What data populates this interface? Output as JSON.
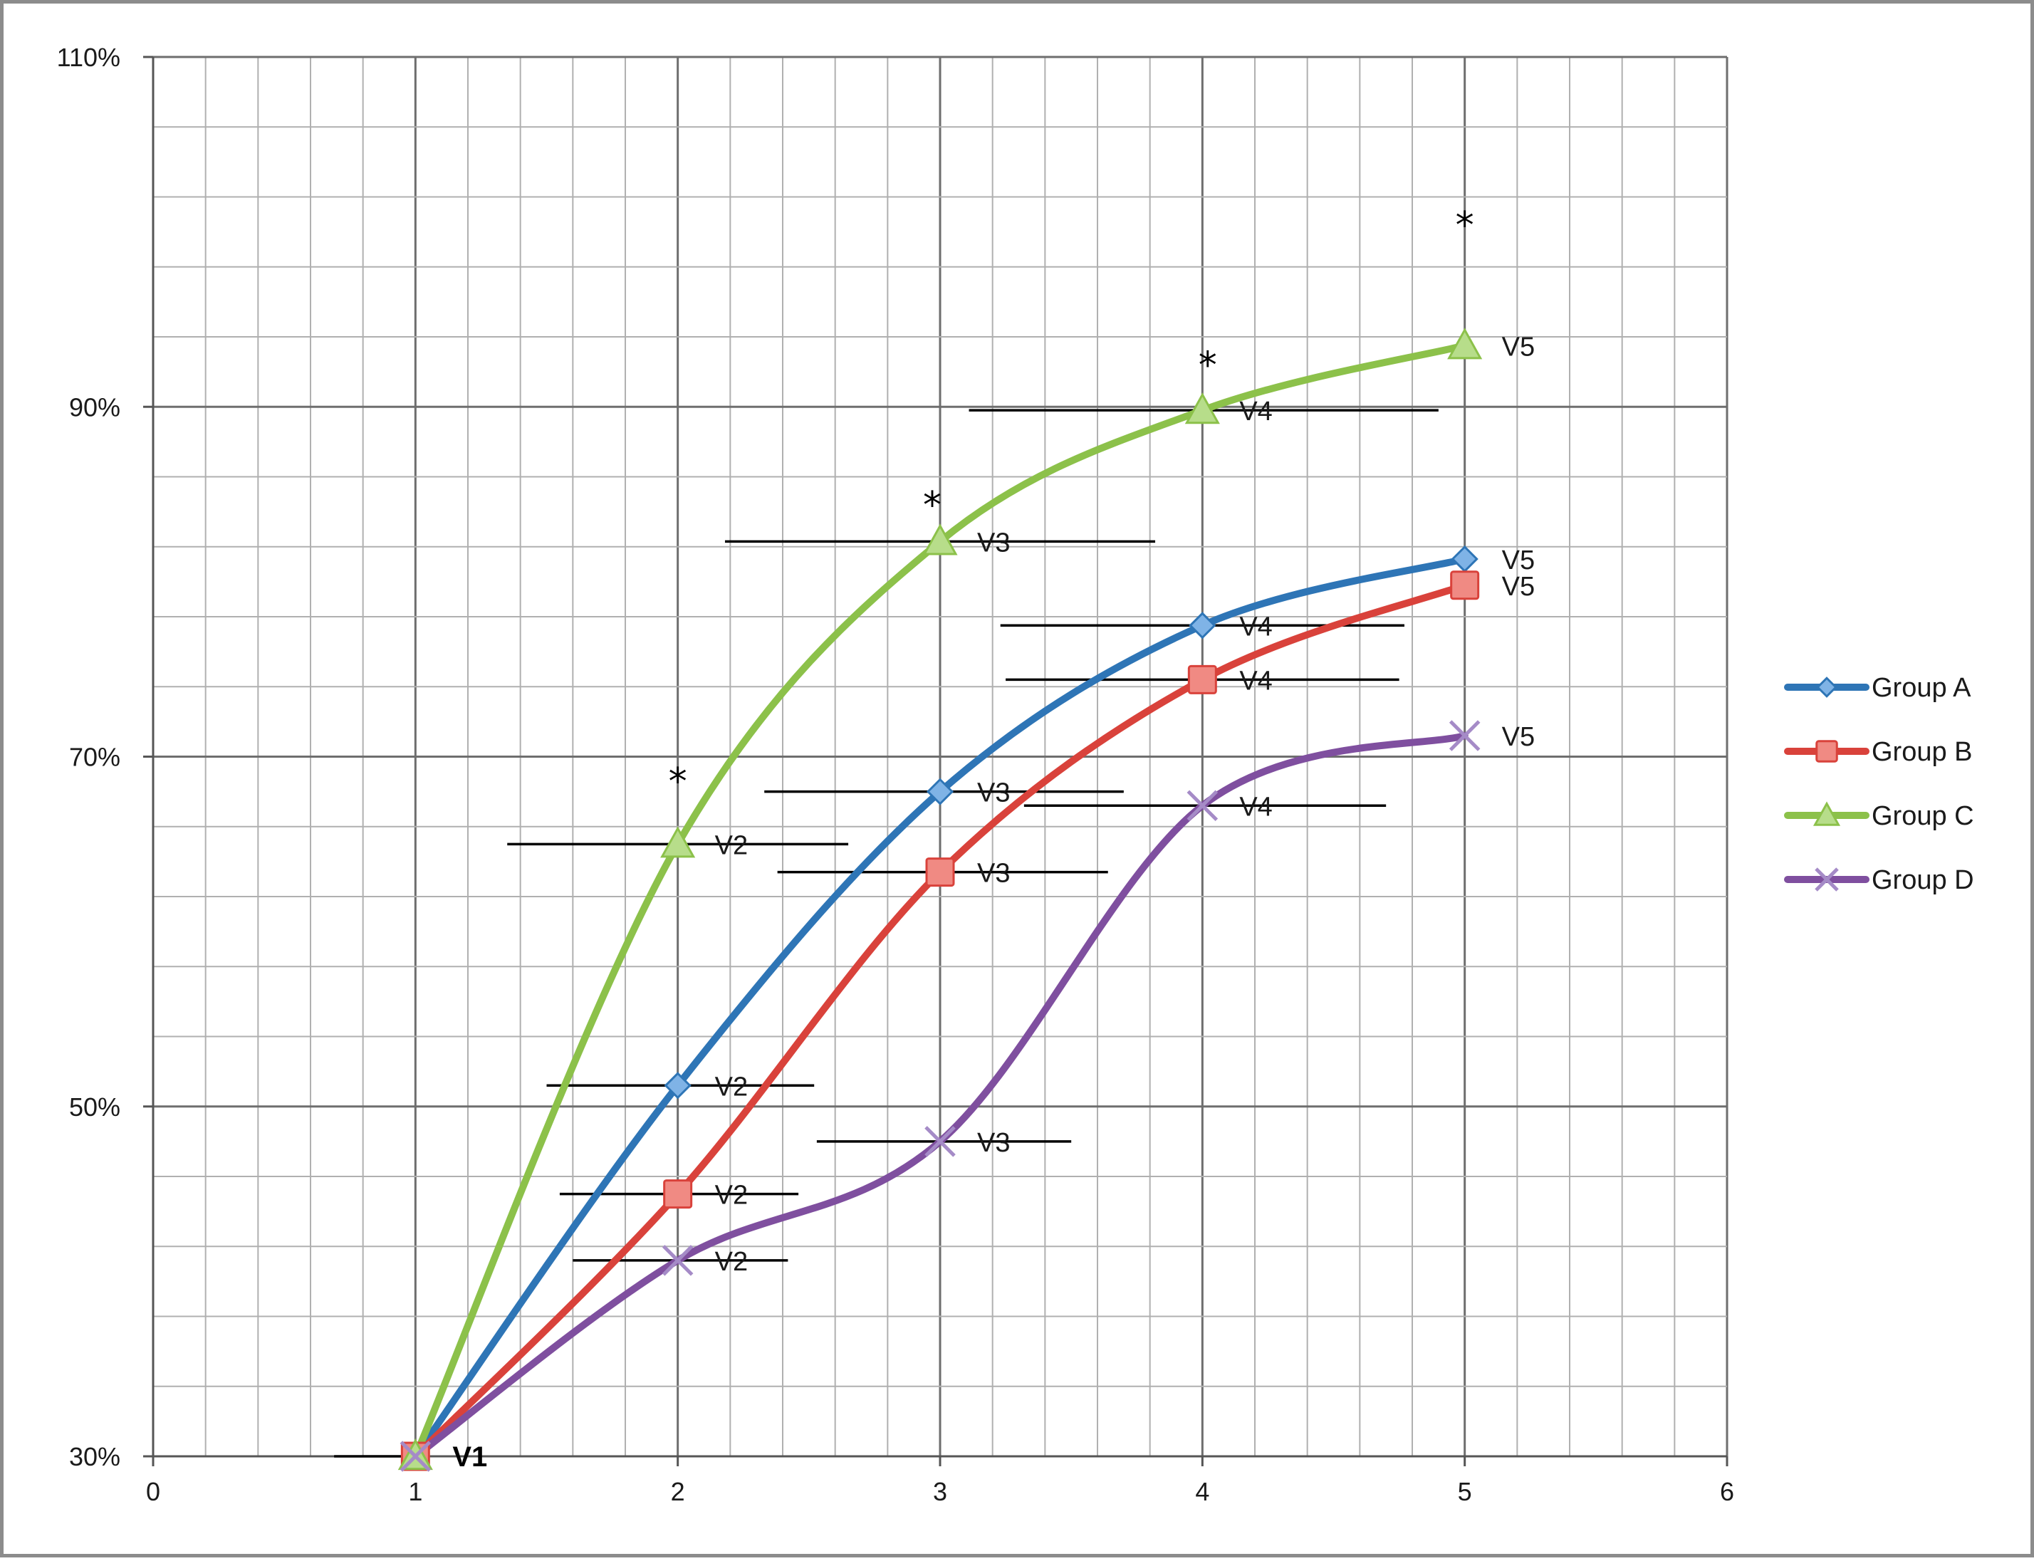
{
  "chart_data": {
    "type": "line",
    "title": "",
    "xlabel": "",
    "ylabel": "",
    "xlim": [
      0,
      6
    ],
    "ylim": [
      0.3,
      1.1
    ],
    "x_ticks": [
      0,
      1,
      2,
      3,
      4,
      5,
      6
    ],
    "x_tick_labels": [
      "0",
      "1",
      "2",
      "3",
      "4",
      "5",
      "6"
    ],
    "y_ticks": [
      0.3,
      0.5,
      0.7,
      0.9,
      1.1
    ],
    "y_tick_labels": [
      "30%",
      "50%",
      "70%",
      "90%",
      "110%"
    ],
    "x_minor_step": 0.2,
    "y_minor_step": 0.04,
    "grid": true,
    "legend_position": "right",
    "series": [
      {
        "name": "Group A",
        "color": "#2e75b6",
        "marker": "diamond",
        "x": [
          1,
          2,
          3,
          4,
          5
        ],
        "values": [
          0.3,
          0.512,
          0.68,
          0.775,
          0.813
        ]
      },
      {
        "name": "Group B",
        "color": "#d9423b",
        "marker": "square",
        "x": [
          1,
          2,
          3,
          4,
          5
        ],
        "values": [
          0.3,
          0.45,
          0.634,
          0.744,
          0.798
        ]
      },
      {
        "name": "Group C",
        "color": "#8cc14a",
        "marker": "triangle",
        "x": [
          1,
          2,
          3,
          4,
          5
        ],
        "values": [
          0.3,
          0.65,
          0.823,
          0.898,
          0.935
        ]
      },
      {
        "name": "Group D",
        "color": "#7f4f9f",
        "marker": "x",
        "x": [
          1,
          2,
          3,
          4,
          5
        ],
        "values": [
          0.3,
          0.412,
          0.48,
          0.672,
          0.712
        ]
      }
    ],
    "error_bars": [
      {
        "y": 0.3,
        "x_low": 0.69,
        "x_high": 1.0
      },
      {
        "y": 0.65,
        "x_low": 1.35,
        "x_high": 2.65
      },
      {
        "y": 0.512,
        "x_low": 1.5,
        "x_high": 2.52
      },
      {
        "y": 0.45,
        "x_low": 1.55,
        "x_high": 2.46
      },
      {
        "y": 0.412,
        "x_low": 1.6,
        "x_high": 2.42
      },
      {
        "y": 0.823,
        "x_low": 2.18,
        "x_high": 3.82
      },
      {
        "y": 0.68,
        "x_low": 2.33,
        "x_high": 3.7
      },
      {
        "y": 0.634,
        "x_low": 2.38,
        "x_high": 3.64
      },
      {
        "y": 0.48,
        "x_low": 2.53,
        "x_high": 3.5
      },
      {
        "y": 0.898,
        "x_low": 3.11,
        "x_high": 4.9
      },
      {
        "y": 0.775,
        "x_low": 3.23,
        "x_high": 4.77
      },
      {
        "y": 0.744,
        "x_low": 3.25,
        "x_high": 4.75
      },
      {
        "y": 0.672,
        "x_low": 3.32,
        "x_high": 4.7
      }
    ],
    "annotations": [
      {
        "text": "V1",
        "x": 1,
        "y": 0.3,
        "bold": true
      },
      {
        "text": "V2",
        "x": 2,
        "y": 0.65
      },
      {
        "text": "V2",
        "x": 2,
        "y": 0.512
      },
      {
        "text": "V2",
        "x": 2,
        "y": 0.45
      },
      {
        "text": "V2",
        "x": 2,
        "y": 0.412
      },
      {
        "text": "V3",
        "x": 3,
        "y": 0.823
      },
      {
        "text": "V3",
        "x": 3,
        "y": 0.68
      },
      {
        "text": "V3",
        "x": 3,
        "y": 0.634
      },
      {
        "text": "V3",
        "x": 3,
        "y": 0.48
      },
      {
        "text": "V4",
        "x": 4,
        "y": 0.898
      },
      {
        "text": "V4",
        "x": 4,
        "y": 0.775
      },
      {
        "text": "V4",
        "x": 4,
        "y": 0.744
      },
      {
        "text": "V4",
        "x": 4,
        "y": 0.672
      },
      {
        "text": "V5",
        "x": 5,
        "y": 0.935
      },
      {
        "text": "V5",
        "x": 5,
        "y": 0.813
      },
      {
        "text": "V5",
        "x": 5,
        "y": 0.798
      },
      {
        "text": "V5",
        "x": 5,
        "y": 0.712
      }
    ],
    "significance_markers": [
      {
        "text": "*",
        "x": 2,
        "y": 0.69
      },
      {
        "text": "*",
        "x": 2.97,
        "y": 0.848
      },
      {
        "text": "*",
        "x": 4.02,
        "y": 0.928
      },
      {
        "text": "*",
        "x": 5,
        "y": 1.008
      }
    ]
  }
}
